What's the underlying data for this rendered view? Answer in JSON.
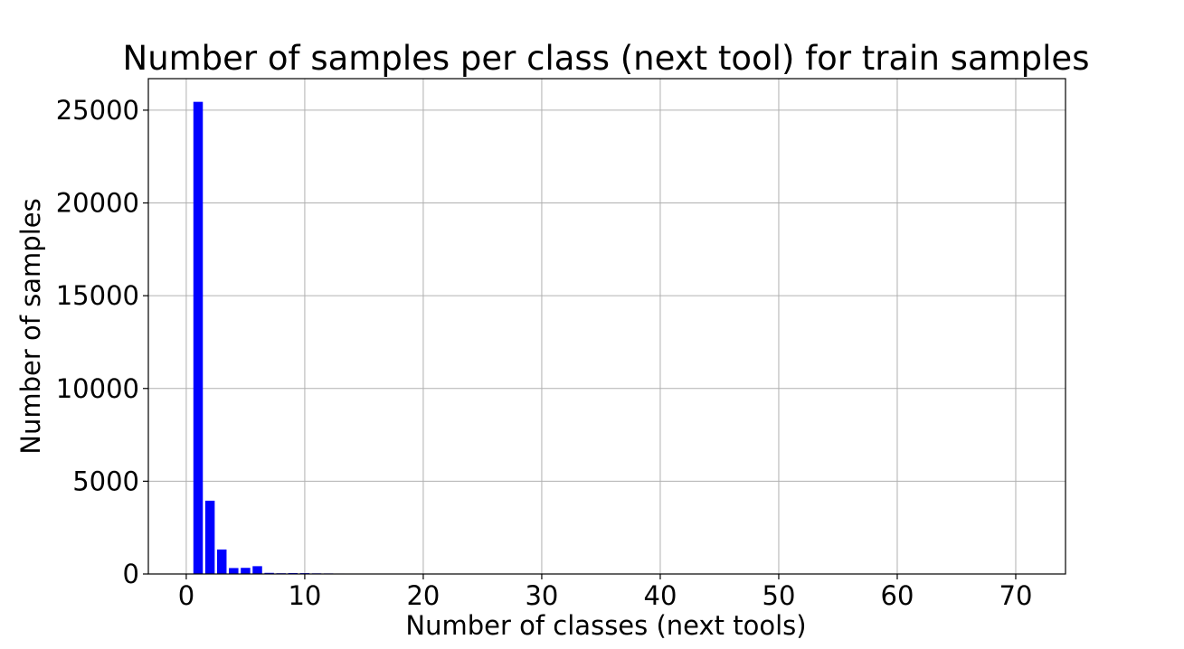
{
  "chart_data": {
    "type": "bar",
    "title": "Number of samples per class (next tool) for train samples",
    "xlabel": "Number of classes (next tools)",
    "ylabel": "Number of samples",
    "xlim": [
      -3.2,
      74.2
    ],
    "ylim": [
      0,
      26700
    ],
    "xticks": [
      0,
      10,
      20,
      30,
      40,
      50,
      60,
      70
    ],
    "yticks": [
      0,
      5000,
      10000,
      15000,
      20000,
      25000
    ],
    "grid": true,
    "bar_color": "#0000ff",
    "x": [
      1,
      2,
      3,
      4,
      5,
      6,
      7,
      8,
      9,
      10,
      11,
      12,
      13,
      14,
      16,
      18,
      19
    ],
    "values": [
      25450,
      3950,
      1320,
      320,
      330,
      420,
      60,
      40,
      50,
      45,
      35,
      30,
      25,
      20,
      15,
      15,
      12
    ]
  }
}
